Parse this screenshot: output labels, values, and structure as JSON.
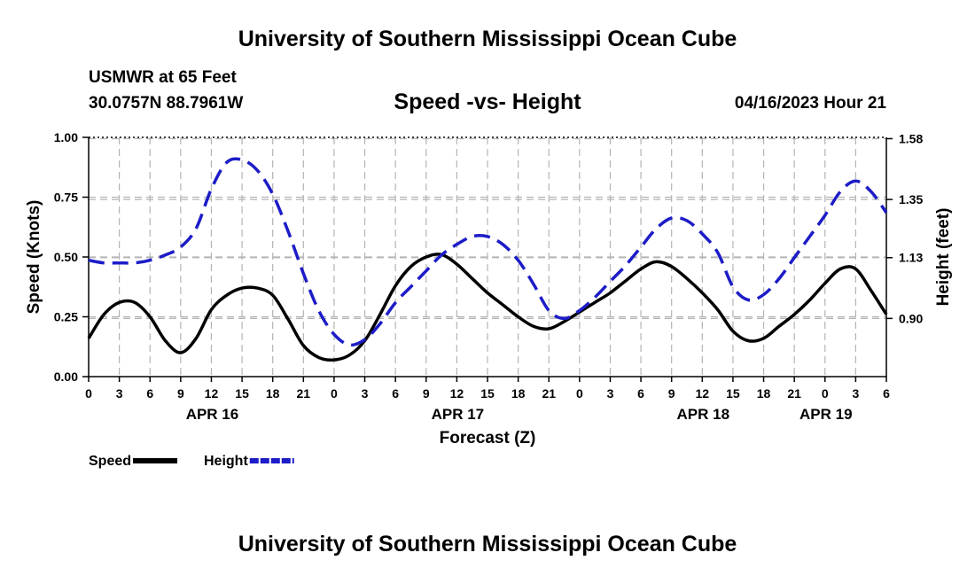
{
  "header": {
    "title": "University of Southern Mississippi Ocean Cube",
    "station": "USMWR at 65 Feet",
    "coords": "30.0757N  88.7961W",
    "subtitle": "Speed -vs- Height",
    "datetime": "04/16/2023 Hour 21"
  },
  "footer": {
    "title": "University of Southern Mississippi Ocean Cube"
  },
  "chart_data": {
    "type": "line",
    "title": "Speed -vs- Height",
    "xlabel": "Forecast (Z)",
    "ylabel": "Speed (Knots)",
    "y2label": "Height (feet)",
    "xlim": [
      0,
      78
    ],
    "ylim": [
      0,
      1.0
    ],
    "y2lim": [
      0.68,
      1.585
    ],
    "x_ticks": [
      0,
      3,
      6,
      9,
      12,
      15,
      18,
      21,
      24,
      27,
      30,
      33,
      36,
      39,
      42,
      45,
      48,
      51,
      54,
      57,
      60,
      63,
      66,
      69,
      72,
      75,
      78
    ],
    "x_tick_labels": [
      "0",
      "3",
      "6",
      "9",
      "12",
      "15",
      "18",
      "21",
      "0",
      "3",
      "6",
      "9",
      "12",
      "15",
      "18",
      "21",
      "0",
      "3",
      "6",
      "9",
      "12",
      "15",
      "18",
      "21",
      "0",
      "3",
      "6"
    ],
    "date_labels": [
      {
        "x": 12,
        "label": "APR 16"
      },
      {
        "x": 36,
        "label": "APR 17"
      },
      {
        "x": 60,
        "label": "APR 18"
      },
      {
        "x": 72,
        "label": "APR 19"
      }
    ],
    "y_ticks": [
      0,
      0.25,
      0.5,
      0.75,
      1.0
    ],
    "y_tick_labels": [
      "0.00",
      "0.25",
      "0.50",
      "0.75",
      "1.00"
    ],
    "y2_ticks": [
      0.9,
      1.13,
      1.35,
      1.58
    ],
    "y2_tick_labels": [
      "0.90",
      "1.13",
      "1.35",
      "1.58"
    ],
    "grid": true,
    "legend": {
      "position": "bottom-left"
    },
    "series": [
      {
        "name": "Speed",
        "axis": "left",
        "color": "#000000",
        "dash": "solid",
        "x": [
          0,
          1.5,
          3,
          4.5,
          6,
          7.5,
          9,
          10.5,
          12,
          13.5,
          15,
          16.5,
          18,
          19.5,
          21,
          22.5,
          24,
          25.5,
          27,
          28.5,
          30,
          31.5,
          33,
          34.5,
          36,
          37.5,
          39,
          40.5,
          42,
          43.5,
          45,
          46.5,
          48,
          49.5,
          51,
          52.5,
          54,
          55.5,
          57,
          58.5,
          60,
          61.5,
          63,
          64.5,
          66,
          67.5,
          69,
          70.5,
          72,
          73.5,
          75,
          76.5,
          78
        ],
        "values": [
          0.16,
          0.26,
          0.31,
          0.31,
          0.25,
          0.15,
          0.1,
          0.16,
          0.28,
          0.34,
          0.37,
          0.37,
          0.34,
          0.24,
          0.13,
          0.08,
          0.07,
          0.09,
          0.15,
          0.26,
          0.38,
          0.46,
          0.5,
          0.51,
          0.47,
          0.41,
          0.35,
          0.3,
          0.25,
          0.21,
          0.2,
          0.23,
          0.27,
          0.31,
          0.35,
          0.4,
          0.45,
          0.48,
          0.46,
          0.41,
          0.35,
          0.28,
          0.19,
          0.15,
          0.16,
          0.21,
          0.26,
          0.32,
          0.39,
          0.45,
          0.45,
          0.36,
          0.26
        ]
      },
      {
        "name": "Height",
        "axis": "right",
        "color": "#1c1cc8",
        "dash": "dashed",
        "x": [
          0,
          1.5,
          3,
          4.5,
          6,
          7.5,
          9,
          10.5,
          12,
          13.5,
          15,
          16.5,
          18,
          19.5,
          21,
          22.5,
          24,
          25.5,
          27,
          28.5,
          30,
          31.5,
          33,
          34.5,
          36,
          37.5,
          39,
          40.5,
          42,
          43.5,
          45,
          46.5,
          48,
          49.5,
          51,
          52.5,
          54,
          55.5,
          57,
          58.5,
          60,
          61.5,
          63,
          64.5,
          66,
          67.5,
          69,
          70.5,
          72,
          73.5,
          75,
          76.5,
          78
        ],
        "values": [
          1.12,
          1.11,
          1.11,
          1.11,
          1.12,
          1.14,
          1.17,
          1.24,
          1.39,
          1.49,
          1.5,
          1.46,
          1.37,
          1.23,
          1.07,
          0.93,
          0.84,
          0.8,
          0.82,
          0.88,
          0.96,
          1.02,
          1.08,
          1.14,
          1.18,
          1.21,
          1.21,
          1.18,
          1.12,
          1.03,
          0.93,
          0.9,
          0.93,
          0.98,
          1.04,
          1.1,
          1.17,
          1.24,
          1.28,
          1.27,
          1.22,
          1.15,
          1.02,
          0.97,
          0.99,
          1.05,
          1.13,
          1.21,
          1.29,
          1.38,
          1.42,
          1.38,
          1.3
        ]
      }
    ]
  }
}
